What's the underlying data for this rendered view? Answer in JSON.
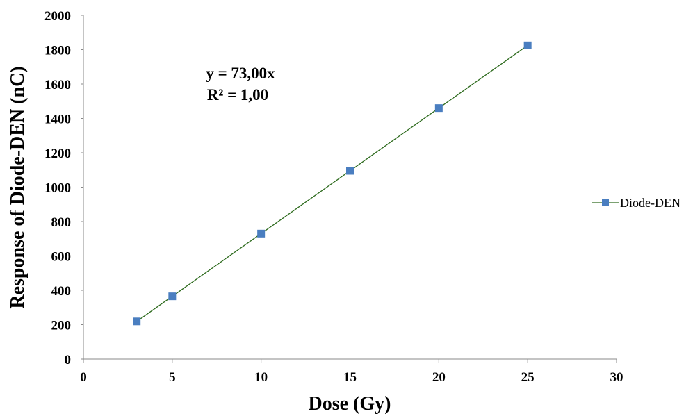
{
  "chart_data": {
    "type": "scatter",
    "xlabel": "Dose (Gy)",
    "ylabel": "Response of Diode-DEN (nC)",
    "xlim": [
      0,
      30
    ],
    "ylim": [
      0,
      2000
    ],
    "x_ticks": [
      "0",
      "5",
      "10",
      "15",
      "20",
      "25",
      "30"
    ],
    "y_ticks": [
      "0",
      "200",
      "400",
      "600",
      "800",
      "1000",
      "1200",
      "1400",
      "1600",
      "1800",
      "2000"
    ],
    "grid": false,
    "legend_position": "right",
    "series": [
      {
        "name": "Diode-DEN",
        "marker": "square",
        "color": "#4a7ec0",
        "points": [
          {
            "x": 3,
            "y": 219
          },
          {
            "x": 5,
            "y": 365
          },
          {
            "x": 10,
            "y": 730
          },
          {
            "x": 15,
            "y": 1095
          },
          {
            "x": 20,
            "y": 1460
          },
          {
            "x": 25,
            "y": 1825
          }
        ]
      }
    ],
    "trendline": {
      "type": "linear",
      "color": "#2e6b1e",
      "slope": 73.0,
      "x_range": [
        3,
        25
      ]
    },
    "annotations": [
      "y = 73,00x",
      "R² = 1,00"
    ]
  }
}
